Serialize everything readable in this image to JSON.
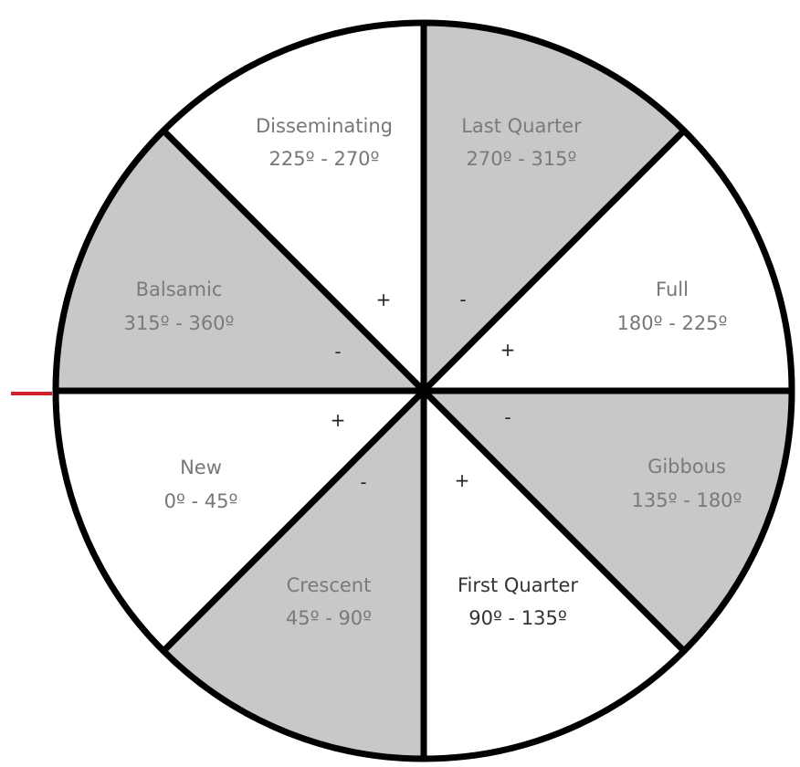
{
  "colors": {
    "shaded": "#c8c8c8",
    "unshaded": "#ffffff",
    "outline": "#000000",
    "marker": "#d0202a",
    "text_on_shaded": "#7a7a7a",
    "text_on_white": "#777777",
    "text_dark": "#333333"
  },
  "phases": [
    {
      "name": "New",
      "range": "0º - 45º",
      "shaded": false
    },
    {
      "name": "Crescent",
      "range": "45º - 90º",
      "shaded": true
    },
    {
      "name": "First Quarter",
      "range": "90º - 135º",
      "shaded": false
    },
    {
      "name": "Gibbous",
      "range": "135º - 180º",
      "shaded": true
    },
    {
      "name": "Full",
      "range": "180º - 225º",
      "shaded": false
    },
    {
      "name": "Last Quarter",
      "range": "270º - 315º",
      "shaded": true
    },
    {
      "name": "Disseminating",
      "range": "225º - 270º",
      "shaded": false
    },
    {
      "name": "Balsamic",
      "range": "315º - 360º",
      "shaded": true
    }
  ],
  "signs": {
    "new_plus": "+",
    "crescent_minus": "-",
    "first_quarter_plus": "+",
    "gibbous_minus": "-",
    "full_plus": "+",
    "last_quarter_minus": "-",
    "disseminating_plus": "+",
    "balsamic_minus": "-"
  }
}
